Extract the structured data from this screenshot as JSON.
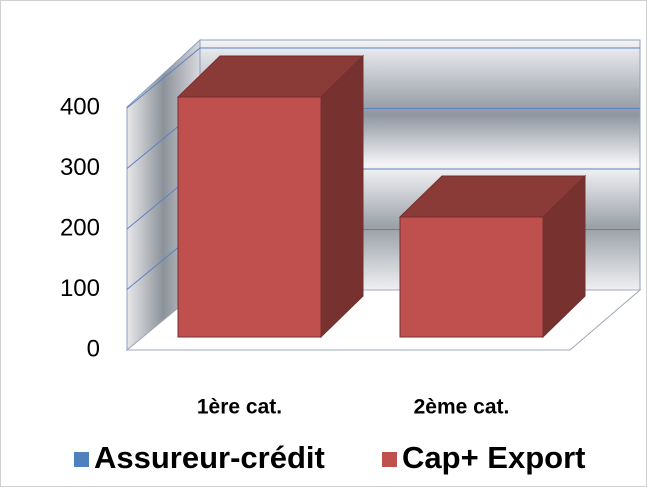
{
  "chart_data": {
    "type": "bar3d",
    "categories": [
      "1ère cat.",
      "2ème cat."
    ],
    "series": [
      {
        "name": "Assureur-crédit",
        "color": "#4f81bd",
        "values": [
          null,
          null
        ]
      },
      {
        "name": "Cap+ Export",
        "color": "#c0504d",
        "values": [
          400,
          200
        ]
      }
    ],
    "ylim": [
      0,
      400
    ],
    "yticks": [
      0,
      100,
      200,
      300,
      400
    ],
    "grid": true,
    "legend": "bottom"
  }
}
